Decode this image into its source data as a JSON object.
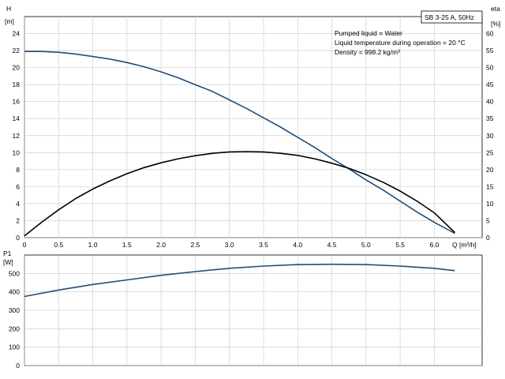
{
  "chart_data": [
    {
      "type": "line",
      "title": "SB 3-25 A, 50Hz",
      "annotations": [
        "Pumped liquid = Water",
        "Liquid temperature during operation = 20 °C",
        "Density = 998.2 kg/m³"
      ],
      "xlabel": "Q [m³/h]",
      "ylabel_left": {
        "name": "H",
        "unit": "[m]"
      },
      "ylabel_right": {
        "name": "eta",
        "unit": "[%]"
      },
      "xlim": [
        0,
        6.7
      ],
      "ylim_left": [
        0,
        26
      ],
      "ylim_right": [
        0,
        65
      ],
      "x_ticks": [
        "0",
        "0.5",
        "1.0",
        "1.5",
        "2.0",
        "2.5",
        "3.0",
        "3.5",
        "4.0",
        "4.5",
        "5.0",
        "5.5",
        "6.0"
      ],
      "y_ticks_left": [
        "0",
        "2",
        "4",
        "6",
        "8",
        "10",
        "12",
        "14",
        "16",
        "18",
        "20",
        "22",
        "24"
      ],
      "y_ticks_right": [
        "0",
        "5",
        "10",
        "15",
        "20",
        "25",
        "30",
        "35",
        "40",
        "45",
        "50",
        "55",
        "60"
      ],
      "grid": true,
      "series": [
        {
          "axis": "left",
          "color": "#1f4e79",
          "x": [
            0,
            0.25,
            0.5,
            0.75,
            1.0,
            1.25,
            1.5,
            1.75,
            2.0,
            2.25,
            2.5,
            2.75,
            3.0,
            3.25,
            3.5,
            3.75,
            4.0,
            4.25,
            4.5,
            4.75,
            5.0,
            5.25,
            5.5,
            5.75,
            6.0,
            6.3
          ],
          "y": [
            21.9,
            21.9,
            21.8,
            21.6,
            21.3,
            21.0,
            20.6,
            20.1,
            19.5,
            18.8,
            18.0,
            17.2,
            16.2,
            15.2,
            14.1,
            13.0,
            11.8,
            10.6,
            9.3,
            8.1,
            6.8,
            5.6,
            4.3,
            3.0,
            1.8,
            0.5
          ]
        },
        {
          "axis": "right",
          "color": "#000000",
          "x": [
            0,
            0.25,
            0.5,
            0.75,
            1.0,
            1.25,
            1.5,
            1.75,
            2.0,
            2.25,
            2.5,
            2.75,
            3.0,
            3.25,
            3.5,
            3.75,
            4.0,
            4.25,
            4.5,
            4.75,
            5.0,
            5.25,
            5.5,
            5.75,
            6.0,
            6.3
          ],
          "y": [
            0.5,
            4.5,
            8.2,
            11.5,
            14.3,
            16.7,
            18.8,
            20.6,
            22.0,
            23.2,
            24.1,
            24.8,
            25.2,
            25.3,
            25.2,
            24.8,
            24.2,
            23.2,
            21.9,
            20.4,
            18.5,
            16.3,
            13.7,
            10.7,
            7.3,
            1.5
          ]
        }
      ]
    },
    {
      "type": "line",
      "ylabel": {
        "name": "P1",
        "unit": "[W]"
      },
      "xlim": [
        0,
        6.7
      ],
      "ylim": [
        0,
        600
      ],
      "y_ticks": [
        "0",
        "100",
        "200",
        "300",
        "400",
        "500"
      ],
      "grid": true,
      "series": [
        {
          "color": "#1f4e79",
          "x": [
            0,
            0.5,
            1.0,
            1.5,
            2.0,
            2.5,
            3.0,
            3.5,
            4.0,
            4.5,
            5.0,
            5.5,
            6.0,
            6.3
          ],
          "y": [
            375,
            410,
            440,
            465,
            490,
            510,
            528,
            540,
            548,
            550,
            548,
            540,
            528,
            515
          ]
        }
      ]
    }
  ]
}
